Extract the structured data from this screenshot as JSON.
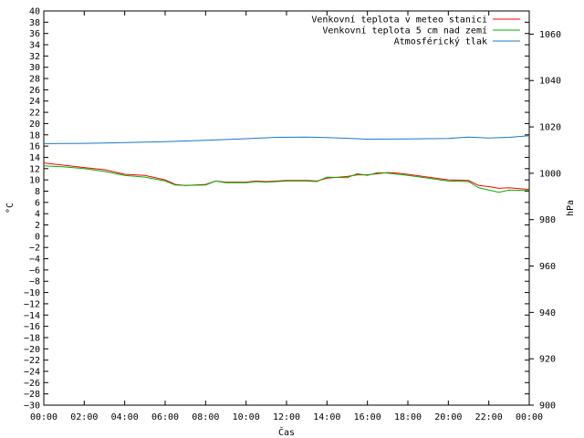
{
  "chart_data": {
    "type": "line",
    "title": "",
    "xlabel": "Čas",
    "ylabel": "°C",
    "y2label": "hPa",
    "x_ticks": [
      "00:00",
      "02:00",
      "04:00",
      "06:00",
      "08:00",
      "10:00",
      "12:00",
      "14:00",
      "16:00",
      "18:00",
      "20:00",
      "22:00",
      "00:00"
    ],
    "x_range_hours": [
      0,
      24
    ],
    "ylim": [
      -30,
      40
    ],
    "y_ticks": [
      40,
      38,
      36,
      34,
      32,
      30,
      28,
      26,
      24,
      22,
      20,
      18,
      16,
      14,
      12,
      10,
      8,
      6,
      4,
      2,
      0,
      -2,
      -4,
      -6,
      -8,
      -10,
      -12,
      -14,
      -16,
      -18,
      -20,
      -22,
      -24,
      -26,
      -28,
      -30
    ],
    "y2lim": [
      900,
      1070
    ],
    "y2_ticks": [
      1060,
      1040,
      1020,
      1000,
      980,
      960,
      940,
      920,
      900
    ],
    "grid": false,
    "legend_position": "top-right",
    "series": [
      {
        "name": "Venkovní teplota v meteo stanici",
        "axis": "y",
        "color": "#ff0000",
        "points": [
          [
            0,
            13.0
          ],
          [
            1,
            12.6
          ],
          [
            2,
            12.2
          ],
          [
            3,
            11.8
          ],
          [
            4,
            11.0
          ],
          [
            5,
            10.8
          ],
          [
            6,
            10.0
          ],
          [
            6.5,
            9.2
          ],
          [
            7,
            9.0
          ],
          [
            8,
            9.2
          ],
          [
            8.5,
            9.8
          ],
          [
            9,
            9.6
          ],
          [
            10,
            9.6
          ],
          [
            10.5,
            9.8
          ],
          [
            11,
            9.7
          ],
          [
            12,
            9.9
          ],
          [
            13,
            9.9
          ],
          [
            13.5,
            9.8
          ],
          [
            14,
            10.3
          ],
          [
            15,
            10.6
          ],
          [
            15.5,
            10.9
          ],
          [
            16,
            10.9
          ],
          [
            16.5,
            11.1
          ],
          [
            17,
            11.3
          ],
          [
            17.5,
            11.2
          ],
          [
            18,
            11.0
          ],
          [
            19,
            10.5
          ],
          [
            20,
            10.0
          ],
          [
            21,
            9.9
          ],
          [
            21.5,
            9.0
          ],
          [
            22,
            8.8
          ],
          [
            22.5,
            8.5
          ],
          [
            23,
            8.6
          ],
          [
            24,
            8.3
          ]
        ]
      },
      {
        "name": "Venkovní teplota 5 cm nad zemí",
        "axis": "y",
        "color": "#00b000",
        "points": [
          [
            0,
            12.5
          ],
          [
            1,
            12.3
          ],
          [
            2,
            12.0
          ],
          [
            3,
            11.5
          ],
          [
            4,
            10.8
          ],
          [
            5,
            10.5
          ],
          [
            6,
            9.8
          ],
          [
            6.5,
            9.1
          ],
          [
            7,
            9.0
          ],
          [
            8,
            9.1
          ],
          [
            8.5,
            9.8
          ],
          [
            9,
            9.5
          ],
          [
            10,
            9.5
          ],
          [
            10.5,
            9.7
          ],
          [
            11,
            9.6
          ],
          [
            12,
            9.8
          ],
          [
            13,
            9.8
          ],
          [
            13.5,
            9.7
          ],
          [
            14,
            10.5
          ],
          [
            15,
            10.4
          ],
          [
            15.5,
            11.1
          ],
          [
            16,
            10.8
          ],
          [
            16.5,
            11.3
          ],
          [
            17,
            11.2
          ],
          [
            17.5,
            11.0
          ],
          [
            18,
            10.8
          ],
          [
            19,
            10.3
          ],
          [
            20,
            9.8
          ],
          [
            21,
            9.7
          ],
          [
            21.5,
            8.6
          ],
          [
            22,
            8.2
          ],
          [
            22.5,
            7.8
          ],
          [
            23,
            8.2
          ],
          [
            24,
            8.1
          ]
        ]
      },
      {
        "name": "Atmosférický tlak",
        "axis": "y2",
        "color": "#1a78c8",
        "points": [
          [
            0,
            1012.8
          ],
          [
            2,
            1012.9
          ],
          [
            4,
            1013.2
          ],
          [
            6,
            1013.6
          ],
          [
            8,
            1014.2
          ],
          [
            10,
            1014.9
          ],
          [
            11.5,
            1015.5
          ],
          [
            13,
            1015.6
          ],
          [
            14,
            1015.4
          ],
          [
            16,
            1014.7
          ],
          [
            18,
            1014.8
          ],
          [
            20,
            1015.0
          ],
          [
            21,
            1015.6
          ],
          [
            22,
            1015.2
          ],
          [
            23,
            1015.5
          ],
          [
            24,
            1016.2
          ]
        ]
      }
    ]
  }
}
